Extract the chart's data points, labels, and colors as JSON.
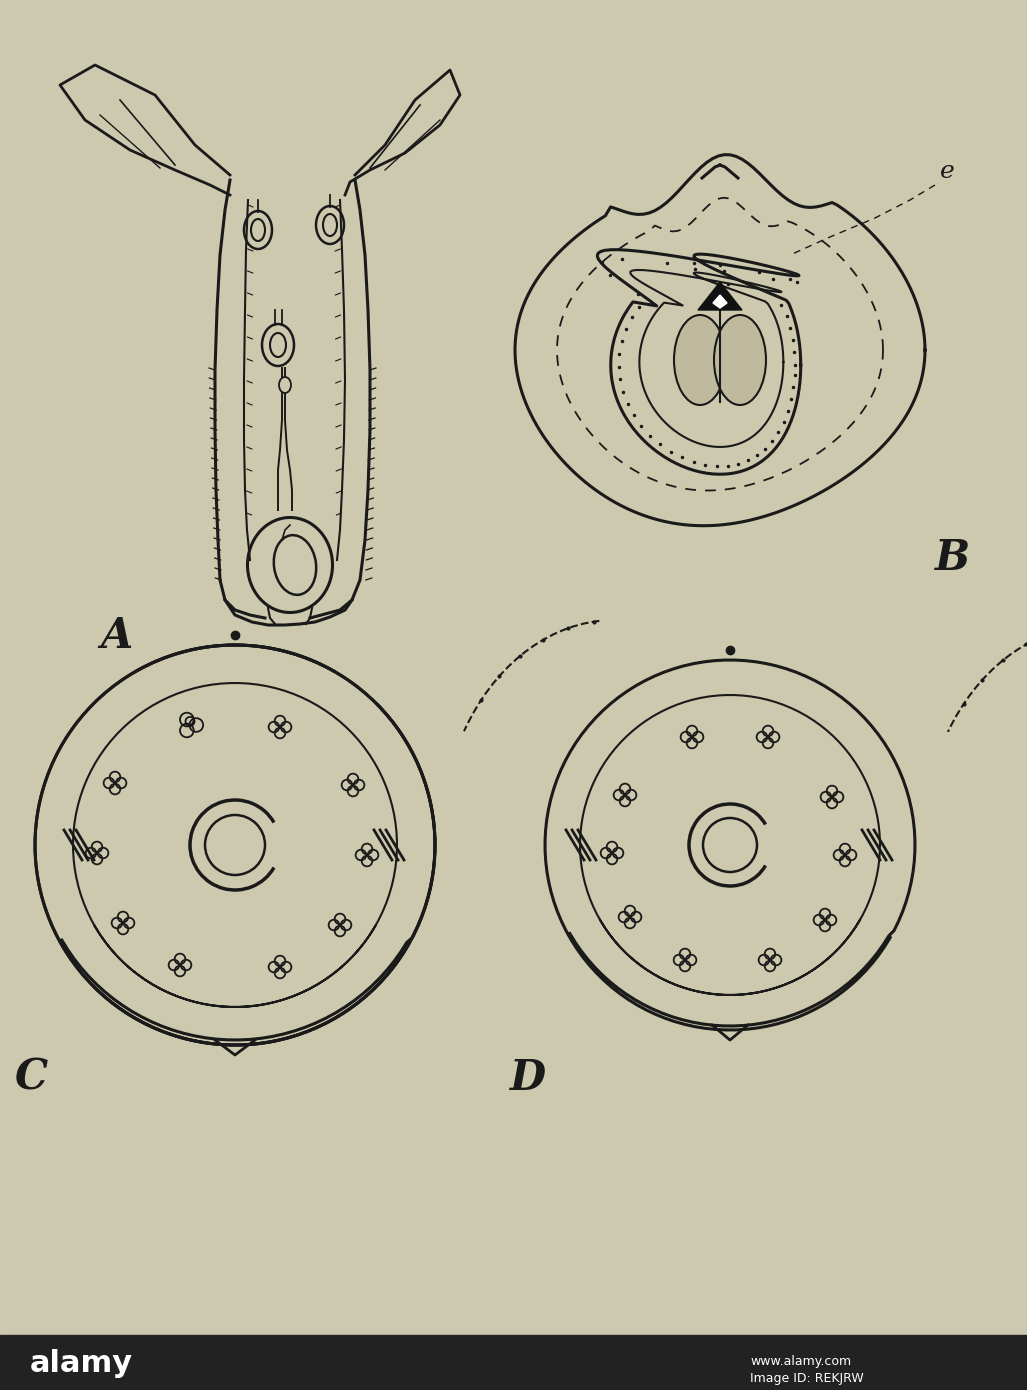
{
  "background_color": "#cdc9ae",
  "line_color": "#1a1a1a",
  "label_A": "A",
  "label_B": "B",
  "label_C": "C",
  "label_D": "D",
  "label_e": "e",
  "figsize": [
    10.27,
    13.9
  ],
  "dpi": 100
}
